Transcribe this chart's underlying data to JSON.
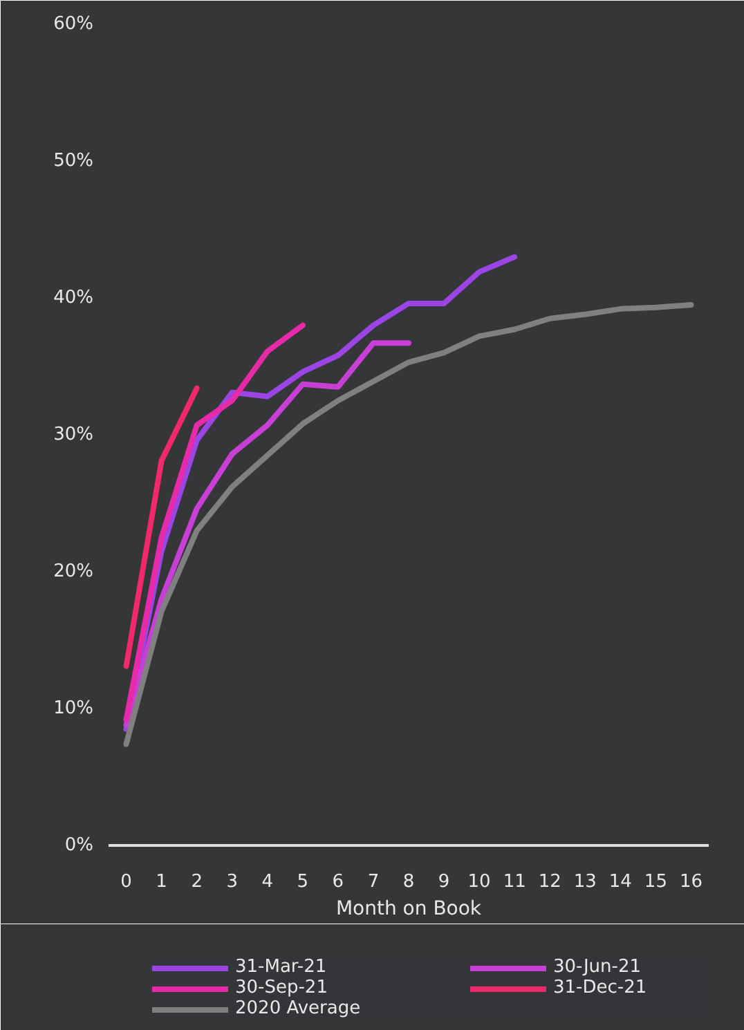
{
  "chart_data": {
    "type": "line",
    "xlabel": "Month on Book",
    "x": [
      0,
      1,
      2,
      3,
      4,
      5,
      6,
      7,
      8,
      9,
      10,
      11,
      12,
      13,
      14,
      15,
      16
    ],
    "series": [
      {
        "name": "31-Mar-21",
        "color": "#9b45e4",
        "values": [
          8.5,
          21.5,
          29.6,
          33.1,
          32.8,
          34.6,
          35.8,
          38.0,
          39.6,
          39.6,
          41.9,
          43.0,
          null,
          null,
          null,
          null,
          null
        ]
      },
      {
        "name": "30-Jun-21",
        "color": "#c83fd6",
        "values": [
          8.8,
          18.0,
          24.6,
          28.6,
          30.7,
          33.7,
          33.5,
          36.7,
          36.7,
          null,
          null,
          null,
          null,
          null,
          null,
          null,
          null
        ]
      },
      {
        "name": "30-Sep-21",
        "color": "#e62aa8",
        "values": [
          9.2,
          22.5,
          30.7,
          32.5,
          36.1,
          38.0,
          null,
          null,
          null,
          null,
          null,
          null,
          null,
          null,
          null,
          null,
          null
        ]
      },
      {
        "name": "31-Dec-21",
        "color": "#f0286c",
        "values": [
          13.1,
          28.1,
          33.4,
          null,
          null,
          null,
          null,
          null,
          null,
          null,
          null,
          null,
          null,
          null,
          null,
          null,
          null
        ]
      },
      {
        "name": "2020 Average",
        "color": "#808080",
        "values": [
          7.4,
          17.1,
          23.0,
          26.2,
          28.5,
          30.8,
          32.5,
          33.9,
          35.3,
          36.0,
          37.2,
          37.7,
          38.5,
          38.8,
          39.2,
          39.3,
          39.5
        ]
      }
    ],
    "xlim": [
      -0.5,
      16.5
    ],
    "xticks": [
      0,
      1,
      2,
      3,
      4,
      5,
      6,
      7,
      8,
      9,
      10,
      11,
      12,
      13,
      14,
      15,
      16
    ],
    "ylim": [
      0,
      60
    ],
    "yticks": [
      {
        "value": 0,
        "label": "0%"
      },
      {
        "value": 10,
        "label": "10%"
      },
      {
        "value": 20,
        "label": "20%"
      },
      {
        "value": 30,
        "label": "30%"
      },
      {
        "value": 40,
        "label": "40%"
      },
      {
        "value": 50,
        "label": "50%"
      },
      {
        "value": 60,
        "label": "60%"
      }
    ],
    "grid": false,
    "legend": "bottom",
    "marker": "none",
    "line_style": "solid"
  }
}
